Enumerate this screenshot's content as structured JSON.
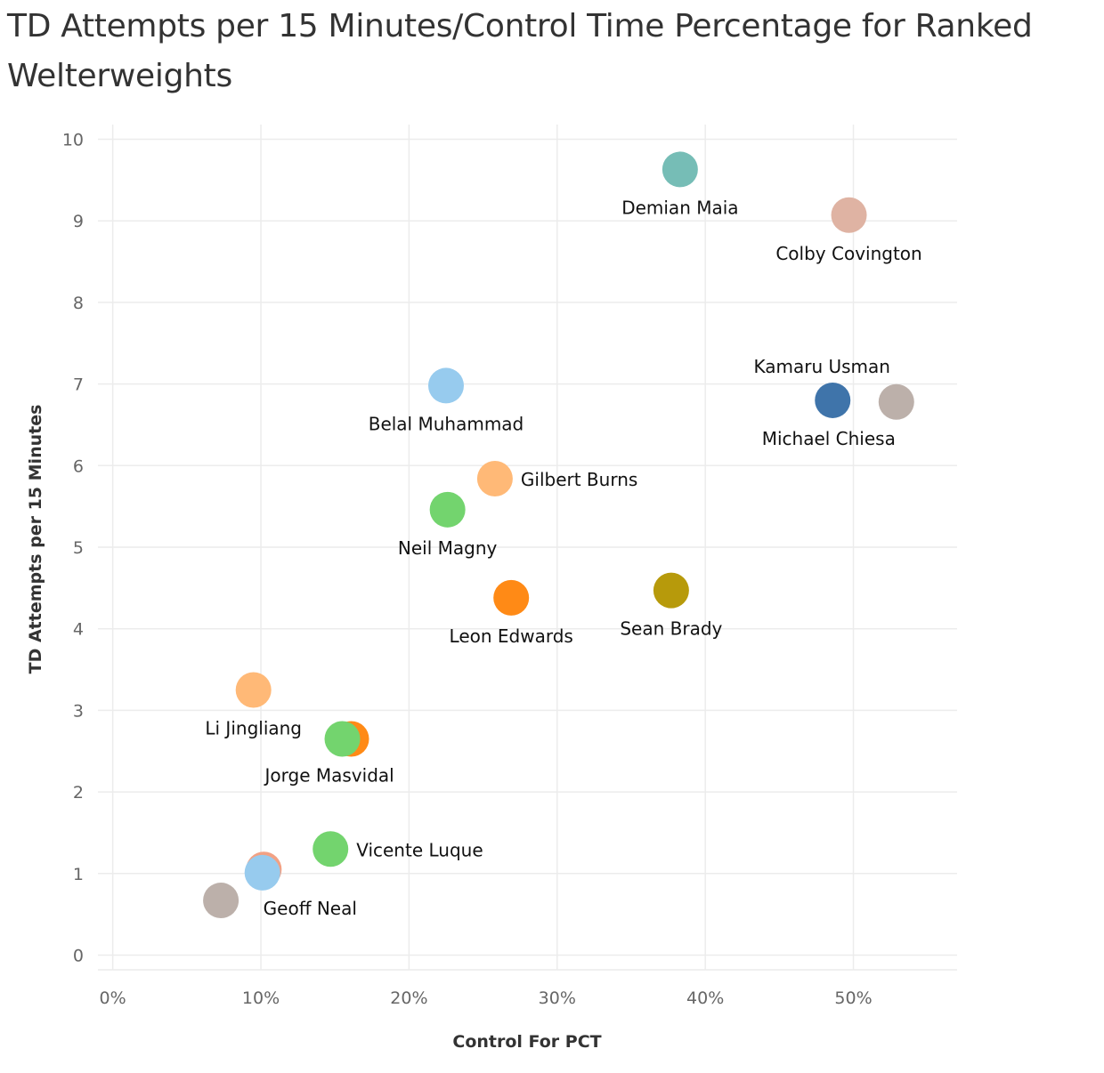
{
  "chart_data": {
    "type": "scatter",
    "title": "TD Attempts per 15 Minutes/Control Time Percentage for Ranked Welterweights",
    "xlabel": "Control For PCT",
    "ylabel": "TD Attempts per 15 Minutes",
    "xlim": [
      -0.01,
      0.57
    ],
    "ylim": [
      -0.18,
      10.18
    ],
    "x_ticks": [
      0,
      0.1,
      0.2,
      0.3,
      0.4,
      0.5
    ],
    "x_tick_labels": [
      "0%",
      "10%",
      "20%",
      "30%",
      "40%",
      "50%"
    ],
    "y_ticks": [
      0,
      1,
      2,
      3,
      4,
      5,
      6,
      7,
      8,
      9,
      10
    ],
    "y_tick_labels": [
      "0",
      "1",
      "2",
      "3",
      "4",
      "5",
      "6",
      "7",
      "8",
      "9",
      "10"
    ],
    "grid": true,
    "legend": "none",
    "points": [
      {
        "label": "Demian Maia",
        "x": 0.383,
        "y": 9.63,
        "color": "#76bdb6",
        "label_pos": "below"
      },
      {
        "label": "Colby Covington",
        "x": 0.497,
        "y": 9.07,
        "color": "#dfb3a3",
        "label_pos": "below"
      },
      {
        "label": "Belal Muhammad",
        "x": 0.225,
        "y": 6.98,
        "color": "#97cbee",
        "label_pos": "below"
      },
      {
        "label": "Kamaru Usman",
        "x": 0.486,
        "y": 6.8,
        "color": "#3f74aa",
        "label_pos": "above"
      },
      {
        "label": "Michael Chiesa",
        "x": 0.529,
        "y": 6.78,
        "color": "#bcb0aa",
        "label_pos": "below-left"
      },
      {
        "label": "Gilbert Burns",
        "x": 0.258,
        "y": 5.84,
        "color": "#ffb977",
        "label_pos": "right"
      },
      {
        "label": "Neil Magny",
        "x": 0.226,
        "y": 5.46,
        "color": "#73d46e",
        "label_pos": "below"
      },
      {
        "label": "Leon Edwards",
        "x": 0.269,
        "y": 4.38,
        "color": "#ff8a16",
        "label_pos": "below"
      },
      {
        "label": "Sean Brady",
        "x": 0.377,
        "y": 4.47,
        "color": "#b79a0b",
        "label_pos": "below"
      },
      {
        "label": "Li Jingliang",
        "x": 0.095,
        "y": 3.25,
        "color": "#ffb977",
        "label_pos": "below"
      },
      {
        "label": "",
        "x": 0.161,
        "y": 2.65,
        "color": "#ff8a16",
        "label_pos": "none"
      },
      {
        "label": "Jorge Masvidal",
        "x": 0.155,
        "y": 2.65,
        "color": "#73d46e",
        "label_pos": "below-right"
      },
      {
        "label": "Vicente Luque",
        "x": 0.147,
        "y": 1.3,
        "color": "#73d46e",
        "label_pos": "right"
      },
      {
        "label": "",
        "x": 0.102,
        "y": 1.05,
        "color": "#f2a184",
        "label_pos": "none"
      },
      {
        "label": "Geoff Neal",
        "x": 0.101,
        "y": 1.01,
        "color": "#97cbee",
        "label_pos": "below-right"
      },
      {
        "label": "",
        "x": 0.073,
        "y": 0.67,
        "color": "#bcb0aa",
        "label_pos": "none"
      }
    ]
  }
}
